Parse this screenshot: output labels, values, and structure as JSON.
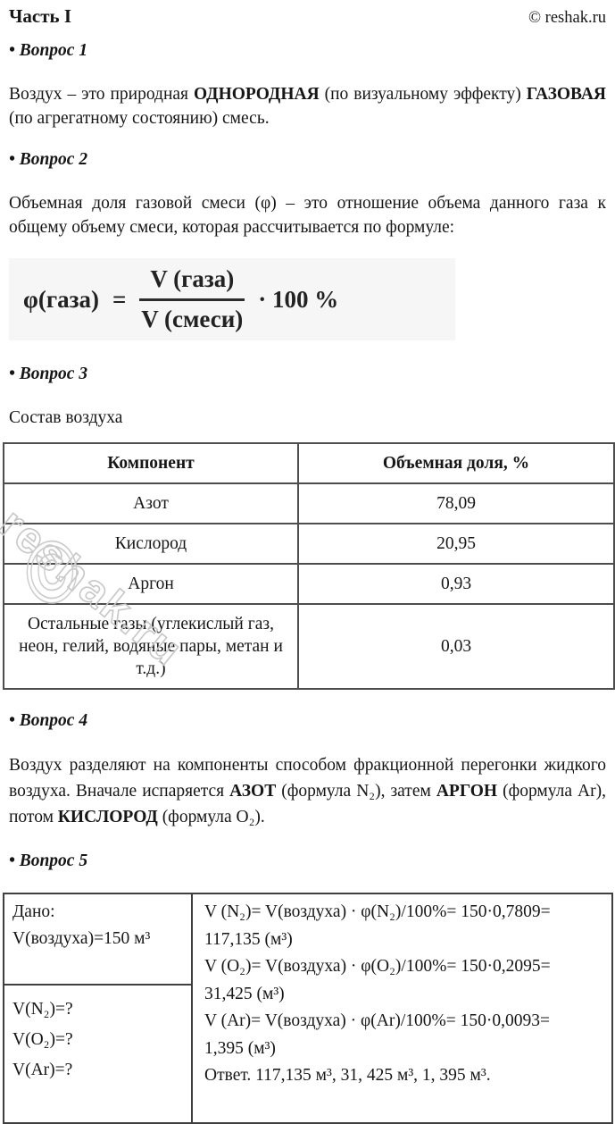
{
  "header": {
    "part_title": "Часть I",
    "copyright": "© reshak.ru"
  },
  "watermark": {
    "text": "reshak.ru",
    "symbol": "©"
  },
  "q1": {
    "heading": "• Вопрос 1",
    "paragraph": [
      {
        "t": "Воздух – это природная ",
        "b": 0
      },
      {
        "t": "ОДНОРОДНАЯ",
        "b": 1
      },
      {
        "t": " (по визуальному эффекту) ",
        "b": 0
      },
      {
        "t": "ГАЗОВАЯ",
        "b": 1
      },
      {
        "t": " (по агрегатному состоянию) смесь.",
        "b": 0
      }
    ]
  },
  "q2": {
    "heading": "• Вопрос 2",
    "paragraph": [
      {
        "t": "Объемная доля газовой смеси (φ) – это отношение объема данного газа к общему объему смеси, которая рассчитывается по формуле:",
        "b": 0
      }
    ],
    "formula": {
      "lhs": "φ(газа)",
      "eq": "=",
      "numerator": "V (газа)",
      "denominator": "V (смеси)",
      "rhs": "· 100 %"
    }
  },
  "q3": {
    "heading": "• Вопрос 3",
    "intro": "Состав воздуха",
    "table": {
      "headers": [
        "Компонент",
        "Объемная доля, %"
      ],
      "rows": [
        [
          "Азот",
          "78,09"
        ],
        [
          "Кислород",
          "20,95"
        ],
        [
          "Аргон",
          "0,93"
        ],
        [
          "Остальные газы (углекислый газ, неон, гелий, водяные пары, метан и т.д.)",
          "0,03"
        ]
      ]
    }
  },
  "q4": {
    "heading": "• Вопрос 4",
    "paragraph": [
      {
        "t": "Воздух разделяют на компоненты способом фракционной перегонки жидкого воздуха. Вначале испаряется ",
        "b": 0
      },
      {
        "t": "АЗОТ",
        "b": 1
      },
      {
        "t": " (формула N₂), затем ",
        "b": 0
      },
      {
        "t": "АРГОН",
        "b": 1
      },
      {
        "t": " (формула Ar), потом ",
        "b": 0
      },
      {
        "t": "КИСЛОРОД",
        "b": 1
      },
      {
        "t": " (формула O₂).",
        "b": 0
      }
    ]
  },
  "q5": {
    "heading": "• Вопрос 5",
    "problem": {
      "given_lines": [
        "Дано:",
        "V(воздуха)=150 м³"
      ],
      "find_lines": [
        "V(N₂)=?",
        "V(O₂)=?",
        "V(Ar)=?"
      ],
      "solution_lines": [
        "V (N₂)= V(воздуха) · φ(N₂)/100%= 150·0,7809=",
        "117,135 (м³)",
        "V (O₂)= V(воздуха) · φ(O₂)/100%= 150·0,2095=",
        "31,425 (м³)",
        "V (Ar)= V(воздуха) · φ(Ar)/100%= 150·0,0093=",
        "1,395 (м³)",
        "Ответ. 117,135 м³, 31, 425 м³, 1, 395 м³."
      ]
    }
  }
}
